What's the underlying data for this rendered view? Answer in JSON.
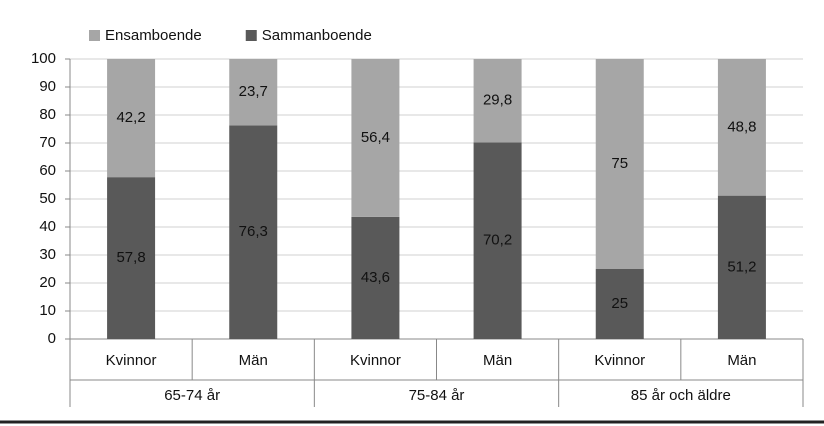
{
  "chart_data": {
    "type": "stacked-bar",
    "categories": [
      "Kvinnor",
      "Män",
      "Kvinnor",
      "Män",
      "Kvinnor",
      "Män"
    ],
    "groups": [
      "65-74 år",
      "75-84 år",
      "85 år och äldre"
    ],
    "series": [
      {
        "name": "Ensamboende",
        "color": "#a6a6a6",
        "values": [
          42.2,
          23.7,
          56.4,
          29.8,
          75,
          48.8
        ],
        "value_labels": [
          "42,2",
          "23,7",
          "56,4",
          "29,8",
          "75",
          "48,8"
        ]
      },
      {
        "name": "Sammanboende",
        "color": "#595959",
        "values": [
          57.8,
          76.3,
          43.6,
          70.2,
          25,
          51.2
        ],
        "value_labels": [
          "57,8",
          "76,3",
          "43,6",
          "70,2",
          "25",
          "51,2"
        ]
      }
    ],
    "ylim": [
      0,
      100
    ],
    "yticks": [
      0,
      10,
      20,
      30,
      40,
      50,
      60,
      70,
      80,
      90,
      100
    ],
    "grid": true
  }
}
